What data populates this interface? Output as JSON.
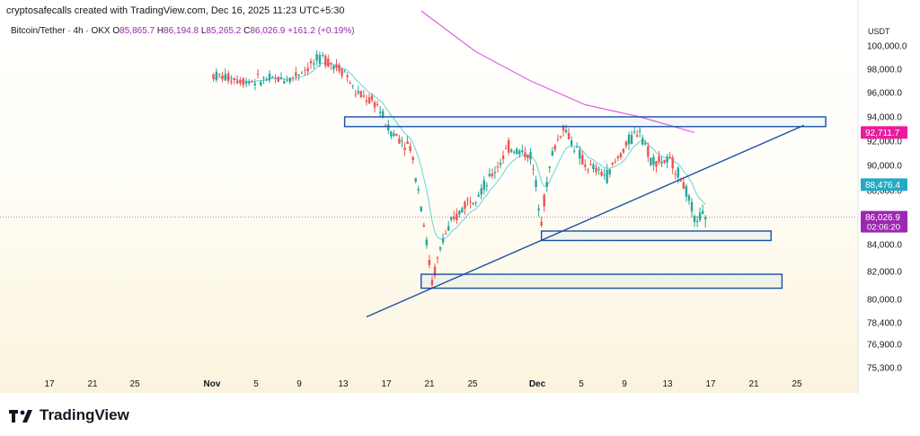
{
  "header": {
    "watermark": "cryptosafecalls created with TradingView.com, Dec 16, 2025 11:23 UTC+5:30",
    "symbol": "Bitcoin/Tether · 4h · OKX",
    "open_label": "O",
    "open": "85,865.7",
    "high_label": "H",
    "high": "86,194.8",
    "low_label": "L",
    "low": "85,265.2",
    "close_label": "C",
    "close": "86,026.9",
    "change": "+161.2 (+0.19%)"
  },
  "price_axis": {
    "currency": "USDT",
    "labels": [
      "100,000.0",
      "98,000.0",
      "96,000.0",
      "94,000.0",
      "92,000.0",
      "90,000.0",
      "88,000.0",
      "86,000.0",
      "84,000.0",
      "82,000.0",
      "80,000.0",
      "78,400.0",
      "76,900.0",
      "75,300.0"
    ],
    "badges": [
      {
        "value": "92,711.7",
        "color": "#e91e9c"
      },
      {
        "value": "88,476.4",
        "color": "#26a9c4"
      },
      {
        "value": "86,026.9",
        "sub": "02:06:20",
        "color": "#9c27b0"
      }
    ]
  },
  "time_axis": {
    "labels": [
      "17",
      "21",
      "25",
      "Nov",
      "5",
      "9",
      "13",
      "17",
      "21",
      "25",
      "Dec",
      "5",
      "9",
      "13",
      "17",
      "21",
      "25"
    ],
    "bold": [
      "Nov",
      "Dec"
    ]
  },
  "footer": {
    "brand": "TradingView"
  },
  "colors": {
    "up": "#26a69a",
    "down": "#ef5350",
    "ema_fast": "#80d8e0",
    "ma_slow": "#e060e0",
    "drawing": "#1a4fa3",
    "price_line": "#9c27b0"
  },
  "chart_data": {
    "type": "candlestick",
    "title": "Bitcoin/Tether · 4h · OKX",
    "timeframe": "4h",
    "ylim": [
      75300,
      100000
    ],
    "price_path": [
      {
        "t": "Nov 1",
        "price": 97500
      },
      {
        "t": "Nov 4",
        "price": 97000
      },
      {
        "t": "Nov 8",
        "price": 97200
      },
      {
        "t": "Nov 11",
        "price": 99000
      },
      {
        "t": "Nov 13",
        "price": 97800
      },
      {
        "t": "Nov 14",
        "price": 96000
      },
      {
        "t": "Nov 16",
        "price": 95000
      },
      {
        "t": "Nov 17",
        "price": 93000
      },
      {
        "t": "Nov 19",
        "price": 91500
      },
      {
        "t": "Nov 20",
        "price": 87000
      },
      {
        "t": "Nov 21",
        "price": 81200
      },
      {
        "t": "Nov 22",
        "price": 84500
      },
      {
        "t": "Nov 24",
        "price": 87000
      },
      {
        "t": "Nov 26",
        "price": 88500
      },
      {
        "t": "Nov 28",
        "price": 91500
      },
      {
        "t": "Nov 30",
        "price": 90800
      },
      {
        "t": "Dec 1",
        "price": 86000
      },
      {
        "t": "Dec 2",
        "price": 91000
      },
      {
        "t": "Dec 3",
        "price": 93200
      },
      {
        "t": "Dec 5",
        "price": 90000
      },
      {
        "t": "Dec 7",
        "price": 89200
      },
      {
        "t": "Dec 9",
        "price": 92000
      },
      {
        "t": "Dec 10",
        "price": 93000
      },
      {
        "t": "Dec 11",
        "price": 90500
      },
      {
        "t": "Dec 13",
        "price": 90200
      },
      {
        "t": "Dec 14",
        "price": 88500
      },
      {
        "t": "Dec 15",
        "price": 85900
      },
      {
        "t": "Dec 16",
        "price": 86026.9
      }
    ],
    "ma_slow": [
      {
        "t": "Nov 20",
        "price": 103000
      },
      {
        "t": "Nov 25",
        "price": 99500
      },
      {
        "t": "Nov 30",
        "price": 97000
      },
      {
        "t": "Dec 5",
        "price": 95000
      },
      {
        "t": "Dec 10",
        "price": 94000
      },
      {
        "t": "Dec 15",
        "price": 92711.7
      }
    ],
    "ema_last": 88476.4,
    "last_price": 86026.9,
    "countdown": "02:06:20",
    "zones": [
      {
        "name": "resistance",
        "price_low": 93200,
        "price_high": 94000
      },
      {
        "name": "support-upper",
        "price_low": 84300,
        "price_high": 85000
      },
      {
        "name": "support-lower",
        "price_low": 80800,
        "price_high": 81800
      }
    ],
    "trendline": {
      "from": {
        "t": "Nov 15",
        "price": 78800
      },
      "to": {
        "t": "Dec 25",
        "price": 93300
      }
    }
  }
}
